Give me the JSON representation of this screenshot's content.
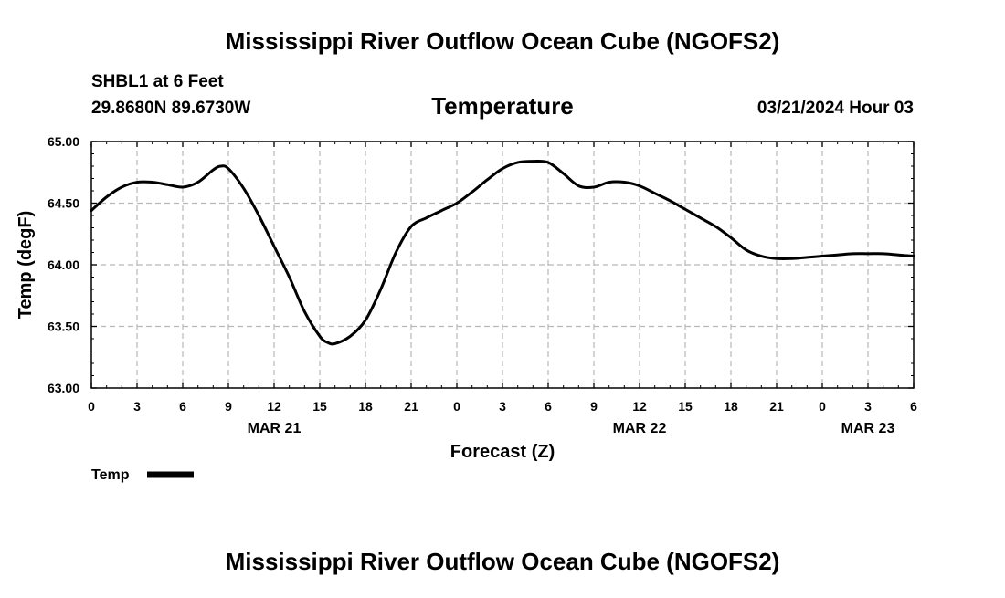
{
  "header": {
    "title": "Mississippi River Outflow Ocean Cube (NGOFS2)",
    "station": "SHBL1 at 6 Feet",
    "coords": "29.8680N  89.6730W",
    "datetime": "03/21/2024 Hour 03"
  },
  "footer": {
    "title": "Mississippi River Outflow Ocean Cube (NGOFS2)"
  },
  "chart_data": {
    "type": "line",
    "title": "Temperature",
    "xlabel": "Forecast (Z)",
    "ylabel": "Temp (degF)",
    "xlim": [
      0,
      54
    ],
    "ylim": [
      63.0,
      65.0
    ],
    "grid": true,
    "x_ticks": [
      0,
      3,
      6,
      9,
      12,
      15,
      18,
      21,
      24,
      27,
      30,
      33,
      36,
      39,
      42,
      45,
      48,
      51,
      54
    ],
    "x_tick_labels": [
      "0",
      "3",
      "6",
      "9",
      "12",
      "15",
      "18",
      "21",
      "0",
      "3",
      "6",
      "9",
      "12",
      "15",
      "18",
      "21",
      "0",
      "3",
      "6"
    ],
    "y_ticks": [
      63.0,
      63.5,
      64.0,
      64.5,
      65.0
    ],
    "y_tick_labels": [
      "63.00",
      "63.50",
      "64.00",
      "64.50",
      "65.00"
    ],
    "day_labels": [
      {
        "x": 12,
        "label": "MAR 21"
      },
      {
        "x": 36,
        "label": "MAR 22"
      },
      {
        "x": 51,
        "label": "MAR 23"
      }
    ],
    "series": [
      {
        "name": "Temp",
        "color": "#000000",
        "x": [
          0,
          1,
          2,
          3,
          4,
          5,
          6,
          7,
          8,
          8.5,
          9,
          10,
          11,
          12,
          13,
          14,
          15,
          15.5,
          16,
          17,
          18,
          19,
          20,
          21,
          22,
          23,
          24,
          25,
          26,
          27,
          28,
          29,
          30,
          31,
          32,
          33,
          34,
          35,
          36,
          37,
          38,
          39,
          40,
          41,
          42,
          43,
          44,
          45,
          46,
          47,
          48,
          49,
          50,
          51,
          52,
          53,
          54
        ],
        "values": [
          64.44,
          64.55,
          64.63,
          64.67,
          64.67,
          64.65,
          64.63,
          64.67,
          64.77,
          64.8,
          64.78,
          64.62,
          64.4,
          64.15,
          63.9,
          63.62,
          63.42,
          63.37,
          63.36,
          63.42,
          63.55,
          63.8,
          64.1,
          64.31,
          64.38,
          64.44,
          64.5,
          64.59,
          64.69,
          64.78,
          64.83,
          64.84,
          64.83,
          64.74,
          64.64,
          64.63,
          64.67,
          64.67,
          64.64,
          64.58,
          64.52,
          64.45,
          64.38,
          64.31,
          64.22,
          64.12,
          64.07,
          64.05,
          64.05,
          64.06,
          64.07,
          64.08,
          64.09,
          64.09,
          64.09,
          64.08,
          64.07
        ]
      }
    ],
    "legend": {
      "label": "Temp",
      "position": "bottom-left"
    }
  }
}
